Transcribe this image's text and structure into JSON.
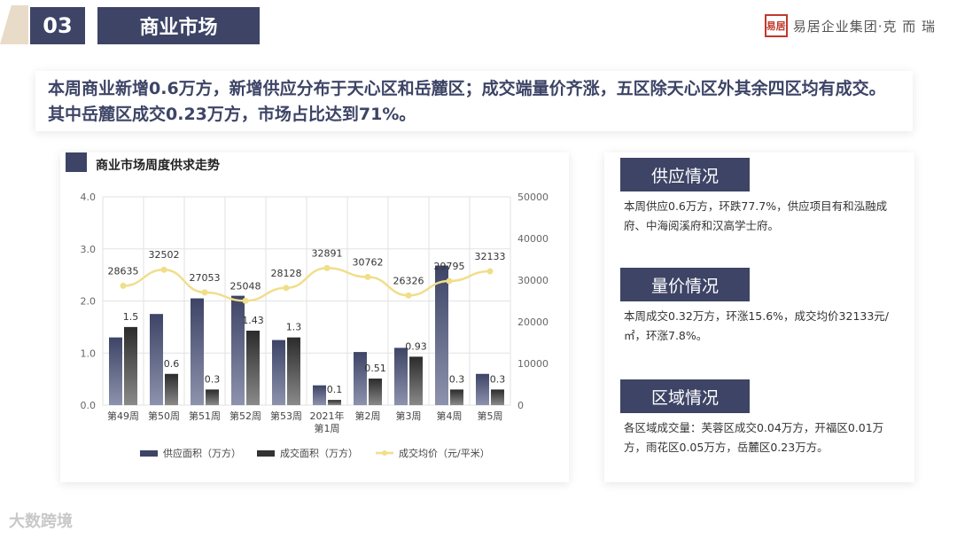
{
  "header": {
    "section_number": "03",
    "section_title": "商业市场",
    "logo_seal": "易居",
    "logo_text": "易居企业集团·克 而 瑞"
  },
  "summary_text": "本周商业新增0.6万方，新增供应分布于天心区和岳麓区；成交端量价齐涨，五区除天心区外其余四区均有成交。其中岳麓区成交0.23万方，市场占比达到71%。",
  "chart_title": "商业市场周度供求走势",
  "chart_data": {
    "type": "bar",
    "categories": [
      "第49周",
      "第50周",
      "第51周",
      "第52周",
      "第53周",
      "2021年\n第1周",
      "第2周",
      "第3周",
      "第4周",
      "第5周"
    ],
    "series": [
      {
        "name": "供应面积（万方）",
        "type": "bar",
        "axis": "left",
        "color": "#3d4466",
        "values": [
          1.3,
          1.75,
          2.05,
          2.1,
          1.25,
          0.38,
          1.02,
          1.1,
          2.68,
          0.6
        ]
      },
      {
        "name": "成交面积（万方）",
        "type": "bar",
        "axis": "left",
        "color": "#333333",
        "values": [
          1.5,
          0.6,
          0.3,
          1.43,
          1.3,
          0.1,
          0.51,
          0.93,
          0.3,
          0.3
        ]
      },
      {
        "name": "成交均价（元/平米）",
        "type": "line",
        "axis": "right",
        "color": "#f0de8a",
        "values": [
          28635,
          32502,
          27053,
          25048,
          28128,
          32891,
          30762,
          26326,
          29795,
          32133
        ]
      }
    ],
    "bar2_labels": [
      "1.5",
      "0.6",
      "0.3",
      "1.43",
      "1.3",
      "0.1",
      "0.51",
      "0.93",
      "0.3",
      "0.3"
    ],
    "line_labels": [
      "28635",
      "32502",
      "27053",
      "25048",
      "28128",
      "32891",
      "30762",
      "26326",
      "29795",
      "32133"
    ],
    "ylim_left": [
      0,
      4
    ],
    "yticks_left": [
      "0.0",
      "1.0",
      "2.0",
      "3.0",
      "4.0"
    ],
    "ylim_right": [
      0,
      50000
    ],
    "yticks_right": [
      "0",
      "10000",
      "20000",
      "30000",
      "40000",
      "50000"
    ],
    "grid": true,
    "legend_position": "bottom"
  },
  "right_panel": {
    "supply": {
      "title": "供应情况",
      "text": "本周供应0.6万方，环跌77.7%，供应项目有和泓融成府、中海阅溪府和汉高学士府。"
    },
    "price": {
      "title": "量价情况",
      "text": "本周成交0.32万方，环涨15.6%，成交均价32133元/㎡，环涨7.8%。"
    },
    "area": {
      "title": "区域情况",
      "text": "各区域成交量：芙蓉区成交0.04万方，开福区0.01万方，雨花区0.05万方，岳麓区0.23万方。"
    }
  },
  "watermark": "大数跨境"
}
